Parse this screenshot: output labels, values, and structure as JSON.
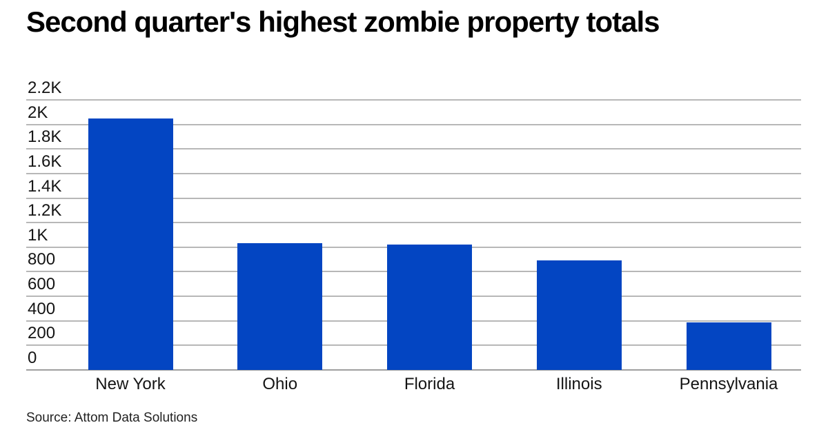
{
  "title": "Second quarter's highest zombie property totals",
  "source_caption": "Source: Attom Data Solutions",
  "colors": {
    "bar": "#0345c2",
    "gridline": "#b7b7b7",
    "axis_line": "#9e9e9e",
    "text": "#141414",
    "title_text": "#000000",
    "background": "#ffffff"
  },
  "chart_data": {
    "type": "bar",
    "title": "Second quarter's highest zombie property totals",
    "categories": [
      "New York",
      "Ohio",
      "Florida",
      "Illinois",
      "Pennsylvania"
    ],
    "values": [
      2050,
      1030,
      1020,
      890,
      385
    ],
    "xlabel": "",
    "ylabel": "",
    "ylim": [
      0,
      2200
    ],
    "ytick_interval": 200,
    "ytick_labels": [
      "0",
      "200",
      "400",
      "600",
      "800",
      "1K",
      "1.2K",
      "1.4K",
      "1.6K",
      "1.8K",
      "2K",
      "2.2K"
    ],
    "grid": true,
    "legend": false,
    "source": "Source: Attom Data Solutions"
  }
}
